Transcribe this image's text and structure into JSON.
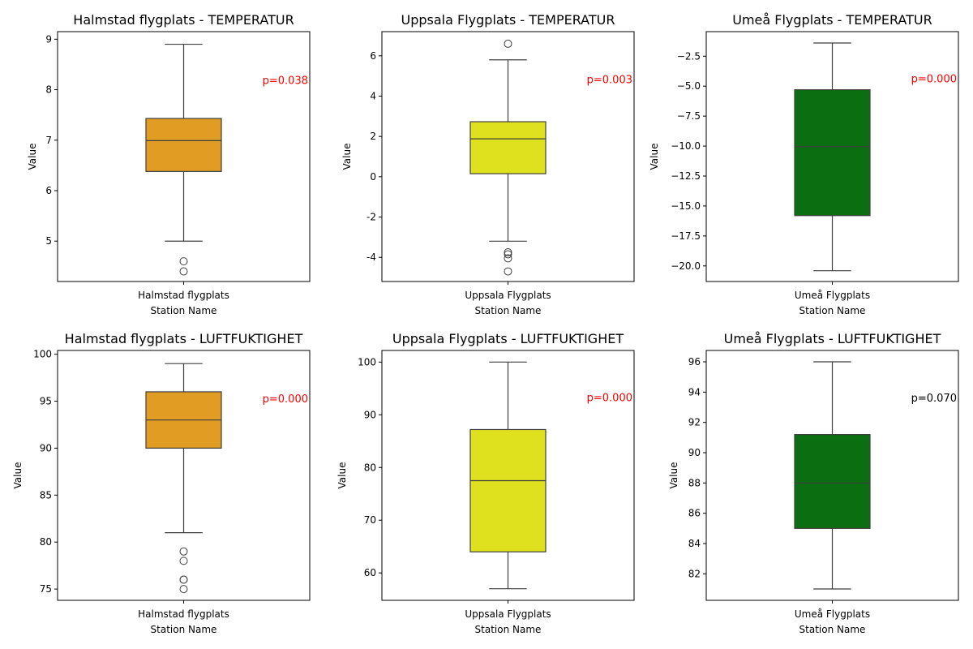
{
  "chart_data": [
    {
      "type": "box",
      "title": "Halmstad flygplats - TEMPERATUR",
      "xlabel": "Station Name",
      "ylabel": "Value",
      "category": "Halmstad flygplats",
      "ylim": [
        4.2,
        9.15
      ],
      "yticks": [
        5,
        6,
        7,
        8,
        9
      ],
      "box": {
        "whisker_low": 5.0,
        "q1": 6.38,
        "median": 6.99,
        "q3": 7.43,
        "whisker_high": 8.9
      },
      "outliers": [
        4.6,
        4.4
      ],
      "color": "#e09c23",
      "annotation": {
        "text": "p=0.038",
        "y": 8.18,
        "color": "#ff0000"
      }
    },
    {
      "type": "box",
      "title": "Uppsala Flygplats - TEMPERATUR",
      "xlabel": "Station Name",
      "ylabel": "Value",
      "category": "Uppsala Flygplats",
      "ylim": [
        -5.2,
        7.2
      ],
      "yticks": [
        -4,
        -2,
        0,
        2,
        4,
        6
      ],
      "box": {
        "whisker_low": -3.2,
        "q1": 0.15,
        "median": 1.88,
        "q3": 2.73,
        "whisker_high": 5.8
      },
      "outliers": [
        6.6,
        -3.75,
        -3.85,
        -4.05,
        -4.7
      ],
      "color": "#dfe11e",
      "annotation": {
        "text": "p=0.003",
        "y": 4.8,
        "color": "#ff0000"
      }
    },
    {
      "type": "box",
      "title": "Umeå Flygplats - TEMPERATUR",
      "xlabel": "Station Name",
      "ylabel": "Value",
      "category": "Umeå Flygplats",
      "ylim": [
        -21.3,
        -0.45
      ],
      "yticks": [
        -20.0,
        -17.5,
        -15.0,
        -12.5,
        -10.0,
        -7.5,
        -5.0,
        -2.5
      ],
      "ytick_labels": [
        "−20.0",
        "−17.5",
        "−15.0",
        "−12.5",
        "−10.0",
        "−7.5",
        "−5.0",
        "−2.5"
      ],
      "box": {
        "whisker_low": -20.4,
        "q1": -15.8,
        "median": -10.05,
        "q3": -5.3,
        "whisker_high": -1.4
      },
      "outliers": [],
      "color": "#0b6e10",
      "annotation": {
        "text": "p=0.000",
        "y": -4.4,
        "color": "#ff0000"
      }
    },
    {
      "type": "box",
      "title": "Halmstad flygplats - LUFTFUKTIGHET",
      "xlabel": "Station Name",
      "ylabel": "Value",
      "category": "Halmstad flygplats",
      "ylim": [
        73.8,
        100.4
      ],
      "yticks": [
        75,
        80,
        85,
        90,
        95,
        100
      ],
      "box": {
        "whisker_low": 81,
        "q1": 90,
        "median": 93,
        "q3": 96,
        "whisker_high": 99
      },
      "outliers": [
        79,
        78,
        76,
        76,
        75
      ],
      "color": "#e09c23",
      "annotation": {
        "text": "p=0.000",
        "y": 95.2,
        "color": "#ff0000"
      }
    },
    {
      "type": "box",
      "title": "Uppsala Flygplats - LUFTFUKTIGHET",
      "xlabel": "Station Name",
      "ylabel": "Value",
      "category": "Uppsala Flygplats",
      "ylim": [
        54.8,
        102.2
      ],
      "yticks": [
        60,
        70,
        80,
        90,
        100
      ],
      "box": {
        "whisker_low": 57,
        "q1": 64,
        "median": 77.5,
        "q3": 87.2,
        "whisker_high": 100
      },
      "outliers": [],
      "color": "#dfe11e",
      "annotation": {
        "text": "p=0.000",
        "y": 93.2,
        "color": "#ff0000"
      }
    },
    {
      "type": "box",
      "title": "Umeå Flygplats - LUFTFUKTIGHET",
      "xlabel": "Station Name",
      "ylabel": "Value",
      "category": "Umeå Flygplats",
      "ylim": [
        80.25,
        96.75
      ],
      "yticks": [
        82,
        84,
        86,
        88,
        90,
        92,
        94,
        96
      ],
      "box": {
        "whisker_low": 81,
        "q1": 85,
        "median": 88,
        "q3": 91.2,
        "whisker_high": 96
      },
      "outliers": [],
      "color": "#0b6e10",
      "annotation": {
        "text": "p=0.070",
        "y": 93.6,
        "color": "#000000"
      }
    }
  ]
}
